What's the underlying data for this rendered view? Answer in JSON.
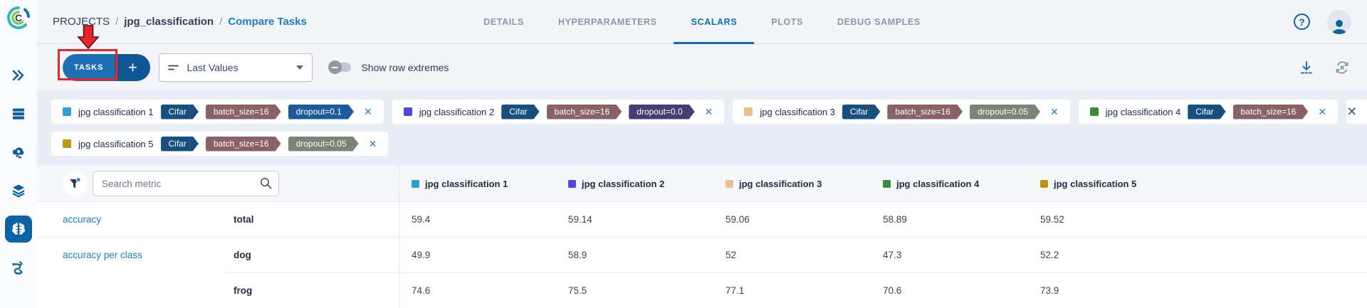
{
  "app": {
    "logo": "clearml-logo"
  },
  "breadcrumb": {
    "items": [
      "PROJECTS",
      "jpg_classification",
      "Compare Tasks"
    ],
    "separator": "/"
  },
  "tabs": [
    {
      "label": "DETAILS",
      "active": false
    },
    {
      "label": "HYPERPARAMETERS",
      "active": false
    },
    {
      "label": "SCALARS",
      "active": true
    },
    {
      "label": "PLOTS",
      "active": false
    },
    {
      "label": "DEBUG SAMPLES",
      "active": false
    }
  ],
  "header_icons": {
    "help": "question-mark-icon",
    "profile": "user-avatar-icon"
  },
  "toolbar": {
    "tasks_button_label": "TASKS",
    "add_button_label": "+",
    "values_mode": "Last Values",
    "show_row_extremes_label": "Show row extremes",
    "right_icons": [
      "download-icon",
      "auto-refresh-icon"
    ],
    "toggle_state": "off"
  },
  "annotation": {
    "shape": "red-box-and-arrow",
    "color": "#e8252b",
    "target": "TASKS button"
  },
  "tasks": [
    {
      "name": "jpg classification 1",
      "color": "#2f9ed6",
      "tags": [
        {
          "label": "Cifar",
          "color": "#17507f"
        },
        {
          "label": "batch_size=16",
          "color": "#8a6265"
        },
        {
          "label": "dropout=0.1",
          "color": "#1d5c9c"
        }
      ]
    },
    {
      "name": "jpg classification 2",
      "color": "#4f46e5",
      "tags": [
        {
          "label": "Cifar",
          "color": "#17507f"
        },
        {
          "label": "batch_size=16",
          "color": "#8a6265"
        },
        {
          "label": "dropout=0.0",
          "color": "#453e72"
        }
      ]
    },
    {
      "name": "jpg classification 3",
      "color": "#e9c094",
      "tags": [
        {
          "label": "Cifar",
          "color": "#17507f"
        },
        {
          "label": "batch_size=16",
          "color": "#8a6265"
        },
        {
          "label": "dropout=0.05",
          "color": "#7c8476"
        }
      ]
    },
    {
      "name": "jpg classification 4",
      "color": "#3c8b3c",
      "tags": [
        {
          "label": "Cifar",
          "color": "#17507f"
        },
        {
          "label": "batch_size=16",
          "color": "#8a6265"
        }
      ]
    },
    {
      "name": "jpg classification 5",
      "color": "#bb9712",
      "tags": [
        {
          "label": "Cifar",
          "color": "#17507f"
        },
        {
          "label": "batch_size=16",
          "color": "#8a6265"
        },
        {
          "label": "dropout=0.05",
          "color": "#7c8476"
        }
      ]
    }
  ],
  "table": {
    "search_placeholder": "Search metric",
    "filter_icon": "funnel-icon-with-active-dot",
    "columns": [
      {
        "label": "jpg classification 1",
        "color": "#2f9ed6"
      },
      {
        "label": "jpg classification 2",
        "color": "#4f46e5"
      },
      {
        "label": "jpg classification 3",
        "color": "#e9c094"
      },
      {
        "label": "jpg classification 4",
        "color": "#3c8b3c"
      },
      {
        "label": "jpg classification 5",
        "color": "#bb9712"
      }
    ],
    "rows": [
      {
        "metric": "accuracy",
        "variant": "total",
        "values": [
          "59.4",
          "59.14",
          "59.06",
          "58.89",
          "59.52"
        ]
      },
      {
        "metric": "accuracy per class",
        "variant": "dog",
        "values": [
          "49.9",
          "58.9",
          "52",
          "47.3",
          "52.2"
        ]
      },
      {
        "metric": "",
        "variant": "frog",
        "values": [
          "74.6",
          "75.5",
          "77.1",
          "70.6",
          "73.9"
        ]
      }
    ]
  },
  "sidebar": {
    "icons": [
      "double-chevron-right",
      "server-rack",
      "cloud-gear",
      "layers",
      "brain",
      "pipeline"
    ],
    "active_icon": "brain"
  },
  "colors": {
    "accent_blue": "#0e6fbe",
    "breadcrumb_link": "#1b80c9",
    "band_background": "#e8edf6",
    "annotation_red": "#e8252b",
    "active_tab": "#0b6cc1"
  }
}
